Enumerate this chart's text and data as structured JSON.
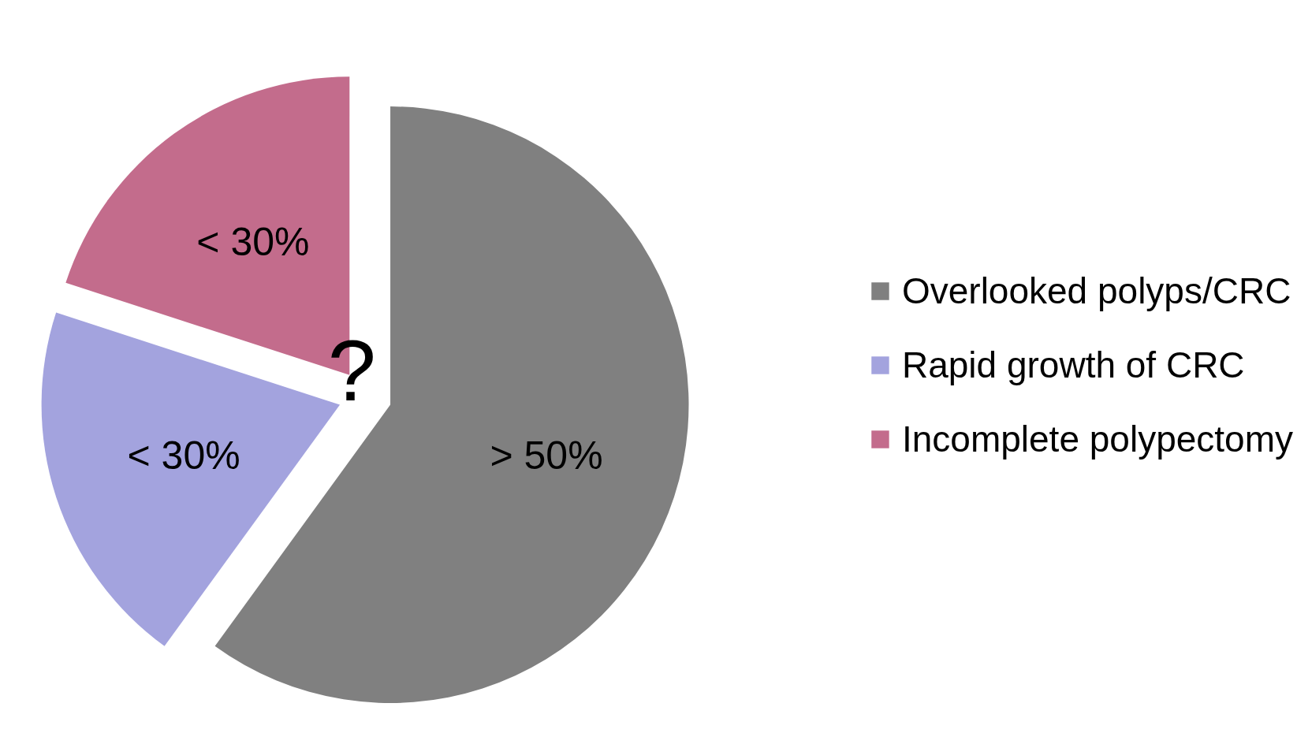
{
  "chart_data": {
    "type": "pie",
    "categories": [
      "Overlooked polyps/CRC",
      "Rapid growth of CRC",
      "Incomplete polypectomy"
    ],
    "values": [
      60,
      20,
      20
    ],
    "colors": [
      "#808080",
      "#a3a3de",
      "#c36c8c"
    ],
    "value_labels": [
      "> 50%",
      "< 30%",
      "< 30%"
    ],
    "annotations": [
      "?"
    ],
    "legend": "right"
  }
}
